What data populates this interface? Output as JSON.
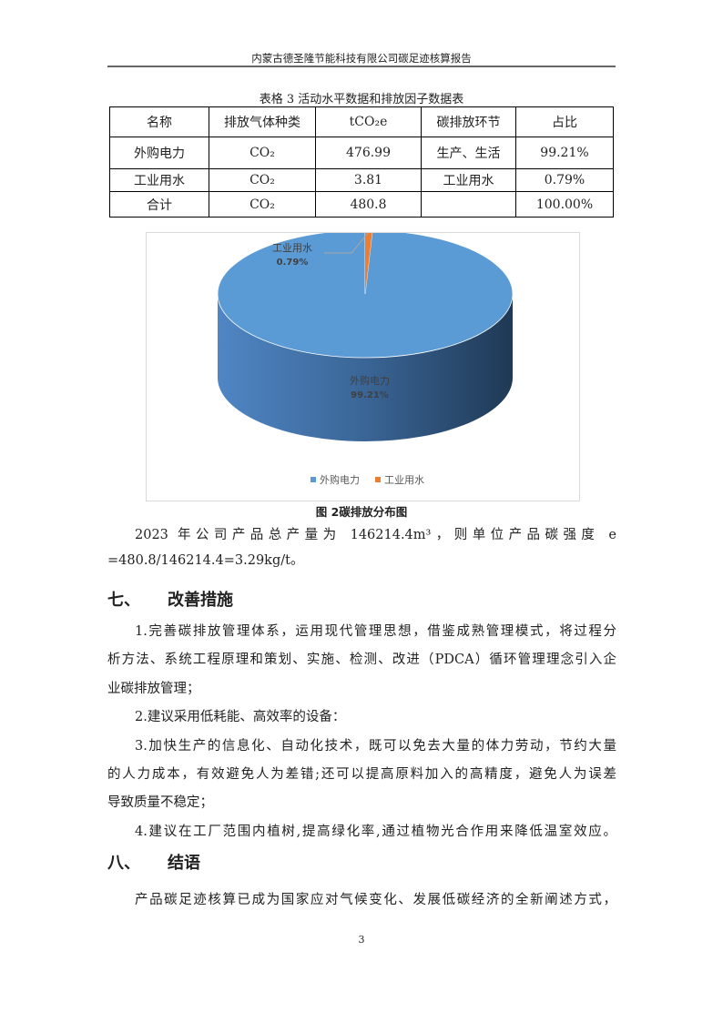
{
  "header": {
    "title": "内蒙古德圣隆节能科技有限公司碳足迹核算报告"
  },
  "table": {
    "caption": "表格 3 活动水平数据和排放因子数据表",
    "headers": [
      "名称",
      "排放气体种类",
      "tCO₂e",
      "碳排放环节",
      "占比"
    ],
    "rows": [
      [
        "外购电力",
        "CO₂",
        "476.99",
        "生产、生活",
        "99.21%"
      ],
      [
        "工业用水",
        "CO₂",
        "3.81",
        "工业用水",
        "0.79%"
      ],
      [
        "合计",
        "CO₂",
        "480.8",
        "",
        "100.00%"
      ]
    ]
  },
  "chart_data": {
    "type": "pie",
    "style": "3d",
    "categories": [
      "外购电力",
      "工业用水"
    ],
    "values": [
      99.21,
      0.79
    ],
    "data_labels": [
      {
        "name": "外购电力",
        "value": "99.21%"
      },
      {
        "name": "工业用水",
        "value": "0.79%"
      }
    ],
    "colors": [
      "#5b9bd5",
      "#ed7d31"
    ],
    "legend": {
      "placement": "bottom",
      "entries": [
        "外购电力",
        "工业用水"
      ]
    }
  },
  "figure_caption": "图 2碳排放分布图",
  "paragraph1": [
    "2023 年公司产品总产量为 146214.4m³，则单位产品碳强度 e",
    "=480.8/146214.4=3.29kg/t。"
  ],
  "section7": {
    "number": "七、",
    "title": "改善措施",
    "items": [
      [
        "1.完善碳排放管理体系，运用现代管理思想，借鉴成熟管理模式，将过程分",
        "析方法、系统工程原理和策划、实施、检测、改进（PDCA）循环管理理念引入企",
        "业碳排放管理；"
      ],
      [
        "2.建议采用低耗能、高效率的设备："
      ],
      [
        "3.加快生产的信息化、自动化技术，既可以免去大量的体力劳动，节约大量",
        "的人力成本，有效避免人为差错;还可以提高原料加入的高精度，避免人为误差",
        "导致质量不稳定；"
      ],
      [
        "4.建议在工厂范围内植树,提高绿化率,通过植物光合作用来降低温室效应。"
      ]
    ]
  },
  "section8": {
    "number": "八、",
    "title": "结语",
    "text": "产品碳足迹核算已成为国家应对气候变化、发展低碳经济的全新阐述方式，"
  },
  "page_number": "3"
}
